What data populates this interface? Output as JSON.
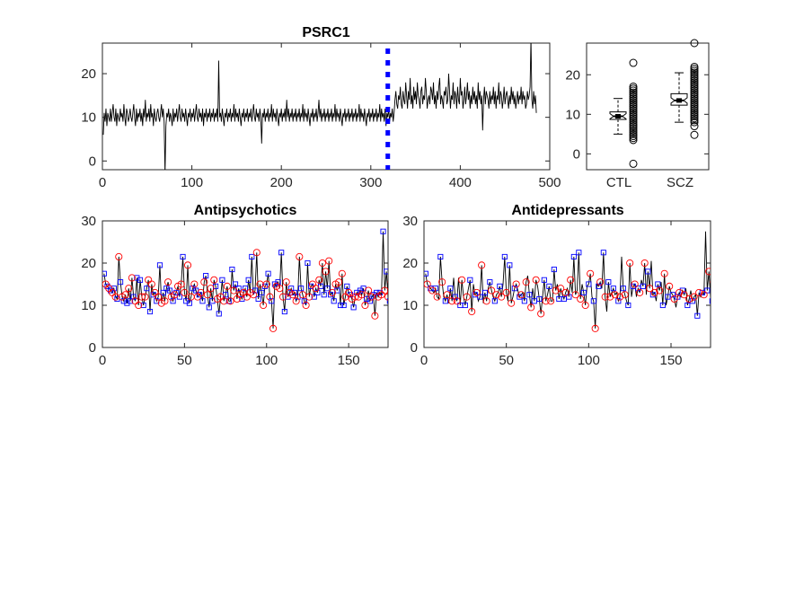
{
  "chart_data": [
    {
      "type": "line",
      "title": "PSRC1",
      "xlim": [
        0,
        500
      ],
      "ylim": [
        -2,
        27
      ],
      "xticks": [
        0,
        100,
        200,
        300,
        400,
        500
      ],
      "yticks": [
        0,
        10,
        20
      ],
      "series": [
        {
          "color": "#000000",
          "values": [
            6,
            11,
            9,
            12,
            8,
            11,
            10,
            9,
            12,
            9,
            11,
            13,
            10,
            9,
            12,
            8,
            11,
            10,
            9,
            12,
            10,
            11,
            9,
            13,
            10,
            8,
            12,
            11,
            9,
            10,
            12,
            10,
            9,
            11,
            13,
            10,
            8,
            12,
            9,
            11,
            10,
            12,
            9,
            11,
            8,
            12,
            10,
            14,
            9,
            11,
            10,
            12,
            9,
            13,
            10,
            11,
            8,
            12,
            10,
            9,
            11,
            12,
            10,
            9,
            11,
            13,
            10,
            12,
            9,
            -3,
            8,
            11,
            10,
            12,
            9,
            11,
            10,
            8,
            12,
            9,
            11,
            10,
            12,
            9,
            11,
            13,
            10,
            9,
            12,
            10,
            11,
            9,
            12,
            10,
            8,
            11,
            10,
            12,
            9,
            11,
            10,
            12,
            9,
            11,
            13,
            10,
            9,
            12,
            10,
            11,
            9,
            12,
            8,
            11,
            10,
            12,
            9,
            11,
            10,
            12,
            9,
            11,
            10,
            12,
            9,
            11,
            10,
            12,
            9,
            23,
            10,
            11,
            9,
            12,
            10,
            8,
            11,
            10,
            12,
            9,
            11,
            10,
            12,
            9,
            11,
            10,
            13,
            9,
            12,
            10,
            11,
            9,
            12,
            10,
            8,
            11,
            10,
            12,
            9,
            11,
            10,
            12,
            9,
            11,
            10,
            12,
            9,
            11,
            13,
            10,
            9,
            12,
            10,
            11,
            9,
            12,
            10,
            4,
            11,
            10,
            12,
            9,
            11,
            10,
            12,
            9,
            11,
            10,
            13,
            9,
            12,
            10,
            11,
            9,
            12,
            10,
            8,
            11,
            10,
            12,
            9,
            11,
            10,
            12,
            9,
            14,
            10,
            12,
            9,
            11,
            10,
            12,
            9,
            11,
            10,
            12,
            9,
            11,
            10,
            12,
            9,
            11,
            10,
            13,
            9,
            12,
            10,
            11,
            9,
            12,
            10,
            8,
            11,
            10,
            12,
            9,
            11,
            10,
            12,
            9,
            11,
            14,
            10,
            12,
            9,
            11,
            10,
            12,
            9,
            11,
            10,
            12,
            9,
            11,
            10,
            12,
            9,
            11,
            10,
            13,
            9,
            12,
            10,
            11,
            9,
            12,
            10,
            8,
            11,
            10,
            12,
            9,
            11,
            10,
            12,
            9,
            11,
            10,
            12,
            9,
            11,
            10,
            12,
            9,
            11,
            10,
            13,
            9,
            12,
            10,
            11,
            9,
            12,
            10,
            8,
            11,
            10,
            12,
            9,
            11,
            10,
            12,
            9,
            11,
            10,
            12,
            9,
            11,
            10,
            13,
            9,
            12,
            10,
            11,
            9,
            12,
            8,
            11,
            10,
            12,
            9,
            11,
            10,
            12,
            9,
            11,
            14,
            16,
            13,
            12,
            15,
            14,
            17,
            13,
            12,
            16,
            14,
            13,
            18,
            15,
            12,
            16,
            14,
            19,
            13,
            15,
            12,
            17,
            14,
            16,
            13,
            18,
            15,
            14,
            12,
            16,
            17,
            13,
            15,
            14,
            19,
            16,
            12,
            14,
            15,
            13,
            17,
            16,
            14,
            18,
            13,
            15,
            12,
            16,
            14,
            17,
            19,
            13,
            15,
            14,
            12,
            16,
            15,
            17,
            13,
            14,
            20,
            16,
            12,
            15,
            14,
            18,
            13,
            16,
            15,
            12,
            17,
            14,
            13,
            19,
            15,
            16,
            12,
            14,
            17,
            13,
            15,
            18,
            14,
            16,
            12,
            15,
            13,
            17,
            14,
            16,
            13,
            15,
            12,
            18,
            14,
            16,
            13,
            15,
            7,
            14,
            17,
            13,
            16,
            15,
            14,
            12,
            16,
            13,
            15,
            14,
            17,
            13,
            16,
            12,
            15,
            14,
            18,
            13,
            16,
            15,
            12,
            14,
            17,
            13,
            15,
            16,
            14,
            12,
            15,
            13,
            17,
            14,
            16,
            13,
            15,
            12,
            14,
            16,
            13,
            15,
            14,
            17,
            13,
            16,
            14,
            15,
            12,
            13,
            16,
            14,
            15,
            17,
            28,
            14,
            12,
            16,
            13,
            15,
            11
          ]
        }
      ],
      "annotations": [
        {
          "type": "vertical-dashed-line",
          "x": 319,
          "color": "#0000ff"
        }
      ]
    },
    {
      "type": "box",
      "categories": [
        "CTL",
        "SCZ"
      ],
      "ylim": [
        -4,
        28
      ],
      "yticks": [
        0,
        10,
        20
      ],
      "boxes": [
        {
          "name": "CTL",
          "median": 9.5,
          "q1": 8.7,
          "q3": 10.6,
          "whisker_low": 5,
          "whisker_high": 14,
          "outliers": [
            -2.5,
            3.5,
            4,
            4.5,
            5,
            5.5,
            6,
            6.5,
            7,
            7.5,
            8,
            8.5,
            9,
            9.5,
            10,
            10.5,
            11,
            11.5,
            12,
            12.5,
            13,
            13.5,
            14,
            14.5,
            15,
            15.5,
            16,
            16.5,
            17,
            23
          ]
        },
        {
          "name": "SCZ",
          "median": 13.5,
          "q1": 12.3,
          "q3": 15.2,
          "whisker_low": 8,
          "whisker_high": 20.5,
          "outliers": [
            4.8,
            7,
            8,
            8.5,
            9,
            9.5,
            10,
            10.5,
            11,
            11.5,
            12,
            12.5,
            13,
            13.5,
            14,
            14.5,
            15,
            15.5,
            16,
            16.5,
            17,
            17.5,
            18,
            18.5,
            19,
            19.5,
            20,
            20.5,
            21,
            21.5,
            22,
            28
          ]
        }
      ]
    },
    {
      "type": "line",
      "title": "Antipsychotics",
      "xlim": [
        0,
        174
      ],
      "ylim": [
        0,
        30
      ],
      "xticks": [
        0,
        50,
        100,
        150
      ],
      "yticks": [
        0,
        10,
        20,
        30
      ],
      "series": [
        {
          "color": "#000000",
          "values": [
            17.5,
            15,
            14.5,
            14,
            13.5,
            13,
            14,
            12,
            11.5,
            21.5,
            15.5,
            12,
            11,
            12.5,
            10.5,
            14,
            11,
            16.5,
            12,
            11,
            16.5,
            10,
            16,
            12,
            10,
            12,
            14,
            16,
            8.5,
            15,
            12.5,
            13,
            11,
            12,
            19.5,
            10.5,
            13,
            11,
            14,
            15.5,
            13.5,
            12,
            11,
            12.5,
            13,
            14.5,
            12,
            15,
            21.5,
            13,
            11,
            19.5,
            10.5,
            12,
            14,
            15,
            13.5,
            12,
            12.5,
            13,
            11,
            15.5,
            17,
            12.5,
            9.5,
            14,
            11,
            16,
            14.5,
            11.5,
            8,
            12,
            16,
            11,
            12.5,
            14.5,
            11,
            11,
            18.5,
            13.5,
            15,
            11.5,
            14,
            12.5,
            11.5,
            13,
            14,
            12,
            16,
            13,
            21.5,
            12.5,
            13.5,
            22.5,
            11.5,
            15,
            13,
            10,
            14.5,
            15,
            17.5,
            12,
            11,
            4.5,
            15,
            14.5,
            15.5,
            14,
            22.5,
            12,
            8.5,
            15.5,
            12,
            13,
            14,
            12.5,
            13,
            11,
            12,
            21.5,
            14,
            12.5,
            11,
            10,
            20,
            12,
            14.5,
            15,
            12,
            14,
            13,
            16,
            14.5,
            20,
            12.5,
            18,
            14,
            20.5,
            12.5,
            13,
            11,
            15,
            13.5,
            15.5,
            10,
            17.5,
            10,
            12,
            14.5,
            13,
            12.5,
            11.5,
            9.5,
            12,
            13,
            12,
            13.5,
            12.5,
            14,
            10,
            11.5,
            13.5,
            11,
            12,
            12.5,
            7.5,
            13,
            12,
            13,
            12.5,
            27.5,
            13.5,
            18,
            12,
            11,
            15.5,
            10.5,
            11
          ]
        }
      ],
      "marker_series": [
        {
          "name": "",
          "marker": "square",
          "color": "#0000ff",
          "indices_every": 2,
          "start": 0
        },
        {
          "name": "",
          "marker": "circle",
          "color": "#ff0000",
          "indices_every": 2,
          "start": 1
        }
      ]
    },
    {
      "type": "line",
      "title": "Antidepressants",
      "xlim": [
        0,
        174
      ],
      "ylim": [
        0,
        30
      ],
      "xticks": [
        0,
        50,
        100,
        150
      ],
      "yticks": [
        0,
        10,
        20,
        30
      ],
      "series": [
        {
          "color": "#000000",
          "values": [
            17.5,
            15,
            14.5,
            14,
            13.5,
            13,
            14,
            12,
            11.5,
            21.5,
            15.5,
            12,
            11,
            12.5,
            10.5,
            14,
            11,
            16.5,
            12,
            11,
            16.5,
            10,
            16,
            12,
            10,
            12,
            14,
            16,
            8.5,
            15,
            12.5,
            13,
            11,
            12,
            19.5,
            10.5,
            13,
            11,
            14,
            15.5,
            13.5,
            12,
            11,
            12.5,
            13,
            14.5,
            12,
            15,
            21.5,
            13,
            11,
            19.5,
            10.5,
            12,
            14,
            15,
            13.5,
            12,
            12.5,
            13,
            11,
            15.5,
            17,
            12.5,
            9.5,
            14,
            11,
            16,
            14.5,
            11.5,
            8,
            12,
            16,
            11,
            12.5,
            14.5,
            11,
            11,
            18.5,
            13.5,
            15,
            11.5,
            14,
            12.5,
            11.5,
            13,
            14,
            12,
            16,
            13,
            21.5,
            12.5,
            13.5,
            22.5,
            11.5,
            15,
            13,
            10,
            14.5,
            15,
            17.5,
            12,
            11,
            4.5,
            15,
            14.5,
            15.5,
            14,
            22.5,
            12,
            8.5,
            15.5,
            12,
            13,
            14,
            12.5,
            13,
            11,
            12,
            21.5,
            14,
            12.5,
            11,
            10,
            20,
            12,
            14.5,
            15,
            12,
            14,
            13,
            16,
            14.5,
            20,
            12.5,
            18,
            14,
            20.5,
            12.5,
            13,
            11,
            15,
            13.5,
            15.5,
            10,
            17.5,
            10,
            12,
            14.5,
            13,
            12.5,
            11.5,
            9.5,
            12,
            13,
            12,
            13.5,
            12.5,
            14,
            10,
            11.5,
            13.5,
            11,
            12,
            12.5,
            7.5,
            13,
            12,
            13,
            12.5,
            27.5,
            13.5,
            18,
            12,
            11,
            15.5,
            10.5,
            11
          ]
        }
      ],
      "marker_series": [
        {
          "name": "",
          "marker": "square",
          "color": "#0000ff",
          "indices_every": 3,
          "start": 0
        },
        {
          "name": "",
          "marker": "circle",
          "color": "#ff0000",
          "indices_every": 3,
          "start": 1
        }
      ]
    }
  ]
}
